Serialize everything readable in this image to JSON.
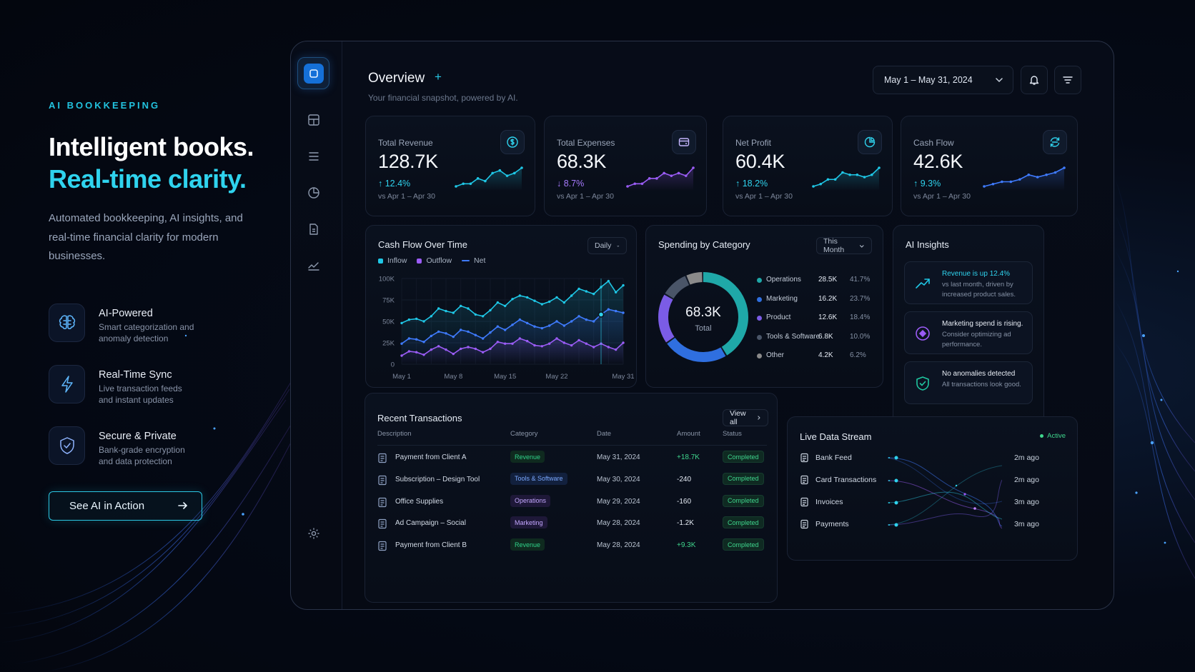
{
  "hero": {
    "eyebrow": "AI BOOKKEEPING",
    "headline_1": "Intelligent books.",
    "headline_2": "Real-time clarity.",
    "lede": "Automated bookkeeping, AI insights, and real-time financial clarity for modern businesses.",
    "features": [
      {
        "title": "AI-Powered",
        "subtitle": "Smart categorization and anomaly detection",
        "icon": "brain-icon"
      },
      {
        "title": "Real-Time Sync",
        "subtitle": "Live transaction feeds and instant updates",
        "icon": "bolt-icon"
      },
      {
        "title": "Secure & Private",
        "subtitle": "Bank-grade encryption and data protection",
        "icon": "shield-check-icon"
      }
    ],
    "cta_label": "See AI in Action"
  },
  "sidebar": {
    "items": [
      {
        "name": "logo-app-icon",
        "active": true
      },
      {
        "name": "dashboard-grid-icon"
      },
      {
        "name": "list-menu-icon"
      },
      {
        "name": "pie-chart-icon"
      },
      {
        "name": "document-icon"
      },
      {
        "name": "trend-line-icon"
      },
      {
        "name": "settings-gear-icon"
      }
    ]
  },
  "header": {
    "title": "Overview",
    "plus": "+",
    "subtitle": "Your financial snapshot, powered by AI.",
    "date_range": "May 1 – May 31, 2024"
  },
  "kpis": [
    {
      "label": "Total Revenue",
      "value": "128.7K",
      "delta": "↑ 12.4%",
      "compare": "vs Apr 1 – Apr 30",
      "icon": "dollar-circle-icon",
      "color": "#1fc7e6",
      "trend": [
        3,
        4,
        4,
        6,
        5,
        8,
        9,
        7,
        8,
        10
      ]
    },
    {
      "label": "Total Expenses",
      "value": "68.3K",
      "delta": "↓ 8.7%",
      "compare": "vs Apr 1 – Apr 30",
      "icon": "wallet-card-icon",
      "color": "#9b5cf6",
      "trend": [
        3,
        4,
        4,
        6,
        6,
        8,
        7,
        8,
        7,
        10
      ]
    },
    {
      "label": "Net Profit",
      "value": "60.4K",
      "delta": "↑ 18.2%",
      "compare": "vs Apr 1 – Apr 30",
      "icon": "pie-chart-icon",
      "color": "#1fc7e6",
      "trend": [
        2,
        3,
        5,
        5,
        8,
        7,
        7,
        6,
        7,
        10
      ]
    },
    {
      "label": "Cash Flow",
      "value": "42.6K",
      "delta": "↑ 9.3%",
      "compare": "vs Apr 1 – Apr 30",
      "icon": "sync-circle-icon",
      "color": "#3f7bff",
      "trend": [
        2,
        3,
        4,
        4,
        5,
        7,
        6,
        7,
        8,
        10
      ]
    }
  ],
  "cashflow": {
    "title": "Cash Flow Over Time",
    "period": "Daily",
    "legend": [
      "Inflow",
      "Outflow",
      "Net"
    ]
  },
  "chart_data": {
    "type": "line",
    "title": "Cash Flow Over Time",
    "x": [
      "May 1",
      "May 2",
      "May 3",
      "May 4",
      "May 5",
      "May 6",
      "May 7",
      "May 8",
      "May 9",
      "May 10",
      "May 11",
      "May 12",
      "May 13",
      "May 14",
      "May 15",
      "May 16",
      "May 17",
      "May 18",
      "May 19",
      "May 20",
      "May 21",
      "May 22",
      "May 23",
      "May 24",
      "May 25",
      "May 26",
      "May 27",
      "May 28",
      "May 29",
      "May 30",
      "May 31"
    ],
    "x_tick_labels": [
      "May 1",
      "May 8",
      "May 15",
      "May 22",
      "May 31"
    ],
    "y_tick_labels": [
      "100K",
      "75K",
      "50K",
      "25K",
      "0"
    ],
    "ylim": [
      0,
      100000
    ],
    "grid": true,
    "legend_position": "top-left",
    "series": [
      {
        "name": "Inflow",
        "color": "#1fc7e6",
        "values": [
          48000,
          52000,
          53000,
          50000,
          56000,
          65000,
          62000,
          60000,
          68000,
          65000,
          58000,
          56000,
          63000,
          72000,
          68000,
          76000,
          80000,
          78000,
          74000,
          70000,
          73000,
          78000,
          72000,
          80000,
          88000,
          85000,
          82000,
          90000,
          97000,
          84000,
          92000
        ]
      },
      {
        "name": "Net",
        "color": "#3f7bff",
        "values": [
          24000,
          30000,
          29000,
          26000,
          33000,
          38000,
          36000,
          32000,
          40000,
          38000,
          34000,
          30000,
          37000,
          44000,
          40000,
          46000,
          52000,
          48000,
          44000,
          42000,
          45000,
          50000,
          45000,
          50000,
          56000,
          52000,
          50000,
          58000,
          64000,
          62000,
          60000
        ]
      },
      {
        "name": "Outflow",
        "color": "#9b5cf6",
        "values": [
          10000,
          15000,
          14000,
          11000,
          17000,
          21000,
          17000,
          12000,
          18000,
          20000,
          18000,
          14000,
          18000,
          26000,
          24000,
          24000,
          30000,
          27000,
          22000,
          21000,
          24000,
          30000,
          25000,
          22000,
          28000,
          24000,
          20000,
          24000,
          20000,
          17000,
          25000
        ]
      }
    ]
  },
  "spending": {
    "title": "Spending by Category",
    "period": "This Month",
    "total_value": "68.3K",
    "total_label": "Total",
    "categories": [
      {
        "name": "Operations",
        "amount": "28.5K",
        "pct": "41.7%",
        "share": 41.7,
        "color": "#1fa8a8"
      },
      {
        "name": "Marketing",
        "amount": "16.2K",
        "pct": "23.7%",
        "share": 23.7,
        "color": "#2f6fe0"
      },
      {
        "name": "Product",
        "amount": "12.6K",
        "pct": "18.4%",
        "share": 18.4,
        "color": "#7b5ce6"
      },
      {
        "name": "Tools & Software",
        "amount": "6.8K",
        "pct": "10.0%",
        "share": 10.0,
        "color": "#4a5568"
      },
      {
        "name": "Other",
        "amount": "4.2K",
        "pct": "6.2%",
        "share": 6.2,
        "color": "#8a8a8a"
      }
    ]
  },
  "insights": {
    "title": "AI Insights",
    "items": [
      {
        "title": "Revenue is up 12.4%",
        "text": "vs last month, driven by increased product sales.",
        "icon": "trend-up-icon",
        "color": "#1fc7e6"
      },
      {
        "title": "Marketing spend is rising.",
        "text": "Consider optimizing ad performance.",
        "icon": "target-circle-icon",
        "color": "#9b5cf6"
      },
      {
        "title": "No anomalies detected",
        "text": "All transactions look good.",
        "icon": "shield-check-icon",
        "color": "#1fc7a0"
      }
    ]
  },
  "transactions": {
    "title": "Recent Transactions",
    "view_all": "View all",
    "columns": [
      "Description",
      "Category",
      "Date",
      "Amount",
      "Status"
    ],
    "rows": [
      {
        "desc": "Payment from Client A",
        "category": "Revenue",
        "date": "May 31, 2024",
        "amount": "+18.7K",
        "status": "Completed",
        "cat_color": "#2fd48a",
        "cat_bg": "#0f2a1f",
        "amt_color": "#3fd68d"
      },
      {
        "desc": "Subscription – Design Tool",
        "category": "Tools & Software",
        "date": "May 30, 2024",
        "amount": "-240",
        "status": "Completed",
        "cat_color": "#7aa8ff",
        "cat_bg": "#12203d",
        "amt_color": "#e6ecf5"
      },
      {
        "desc": "Office Supplies",
        "category": "Operations",
        "date": "May 29, 2024",
        "amount": "-160",
        "status": "Completed",
        "cat_color": "#c3a7ff",
        "cat_bg": "#1e1838",
        "amt_color": "#e6ecf5"
      },
      {
        "desc": "Ad Campaign – Social",
        "category": "Marketing",
        "date": "May 28, 2024",
        "amount": "-1.2K",
        "status": "Completed",
        "cat_color": "#c3a7ff",
        "cat_bg": "#1e1838",
        "amt_color": "#e6ecf5"
      },
      {
        "desc": "Payment from Client B",
        "category": "Revenue",
        "date": "May 28, 2024",
        "amount": "+9.3K",
        "status": "Completed",
        "cat_color": "#2fd48a",
        "cat_bg": "#0f2a1f",
        "amt_color": "#3fd68d"
      }
    ]
  },
  "live_stream": {
    "title": "Live Data Stream",
    "status": "Active",
    "rows": [
      {
        "name": "Bank Feed",
        "time": "2m ago"
      },
      {
        "name": "Card Transactions",
        "time": "2m ago"
      },
      {
        "name": "Invoices",
        "time": "3m ago"
      },
      {
        "name": "Payments",
        "time": "3m ago"
      }
    ]
  }
}
